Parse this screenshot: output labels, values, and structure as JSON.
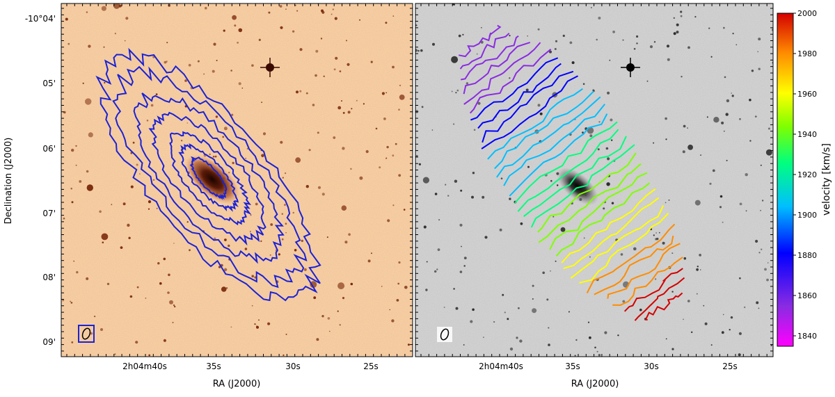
{
  "panels": {
    "left": {
      "ylabel": "Declination (J2000)",
      "xlabel": "RA (J2000)",
      "yticks": [
        "-10°04'",
        "05'",
        "06'",
        "07'",
        "08'",
        "09'"
      ],
      "xticks": [
        "2h04m40s",
        "35s",
        "30s",
        "25s"
      ],
      "contour_color": "#1a22d6",
      "background_tint": "#f4c79a"
    },
    "right": {
      "xlabel": "RA (J2000)",
      "xticks": [
        "2h04m40s",
        "35s",
        "30s",
        "25s"
      ],
      "background_tint": "#d2d2d2"
    }
  },
  "colorbar": {
    "label": "velocity [km/s]",
    "ticks": [
      "2000",
      "1980",
      "1960",
      "1940",
      "1920",
      "1900",
      "1880",
      "1860",
      "1840"
    ],
    "range": [
      1835,
      2000
    ],
    "colormap": [
      "#ff00ff",
      "#8a2be2",
      "#0000ff",
      "#00bfff",
      "#00ff7f",
      "#7fff00",
      "#ffff00",
      "#ff8c00",
      "#d40000"
    ]
  },
  "chart_data": {
    "type": "contour",
    "figures": [
      {
        "panel": "left",
        "layer": "HI column density contours over optical image",
        "xlabel": "RA (J2000)",
        "ylabel": "Declination (J2000)",
        "xlim": [
          "2h04m45s",
          "2h04m22s"
        ],
        "ylim": [
          "-10°09'15\"",
          "-10°03'50\""
        ],
        "contour_levels": 7
      },
      {
        "panel": "right",
        "layer": "HI velocity field contours over greyscale optical image",
        "xlabel": "RA (J2000)",
        "velocity_range_kms": [
          1835,
          2000
        ],
        "velocity_ticks": [
          1840,
          1860,
          1880,
          1900,
          1920,
          1940,
          1960,
          1980,
          2000
        ]
      }
    ]
  }
}
